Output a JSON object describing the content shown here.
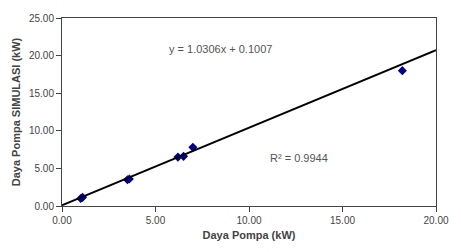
{
  "chart_data": {
    "type": "scatter",
    "xlabel": "Daya Pompa (kW)",
    "ylabel": "Daya Pompa SIMULASI (kW)",
    "annotations": [
      "y = 1.0306x + 0.1007",
      "R² = 0.9944"
    ],
    "series": [
      {
        "type": "scatter",
        "marker": "diamond",
        "color": "#00008B",
        "x": [
          1.0,
          1.1,
          3.5,
          3.6,
          6.2,
          6.5,
          7.0,
          18.2
        ],
        "values": [
          1.0,
          1.15,
          3.5,
          3.6,
          6.5,
          6.6,
          7.8,
          18.0
        ]
      },
      {
        "type": "line",
        "color": "#000000",
        "line_style": "solid",
        "x": [
          0.0,
          20.0
        ],
        "values": [
          0.1007,
          20.7127
        ]
      }
    ],
    "xlim": [
      0,
      20
    ],
    "ylim": [
      0,
      25
    ],
    "xticks": [
      {
        "value": 0,
        "label": "0.00"
      },
      {
        "value": 5,
        "label": "5.00"
      },
      {
        "value": 10,
        "label": "10.00"
      },
      {
        "value": 15,
        "label": "15.00"
      },
      {
        "value": 20,
        "label": "20.00"
      }
    ],
    "yticks": [
      {
        "value": 0,
        "label": "0.00"
      },
      {
        "value": 5,
        "label": "5.00"
      },
      {
        "value": 10,
        "label": "10.00"
      },
      {
        "value": 15,
        "label": "15.00"
      },
      {
        "value": 20,
        "label": "20.00"
      },
      {
        "value": 25,
        "label": "25.00"
      }
    ],
    "grid": false
  }
}
